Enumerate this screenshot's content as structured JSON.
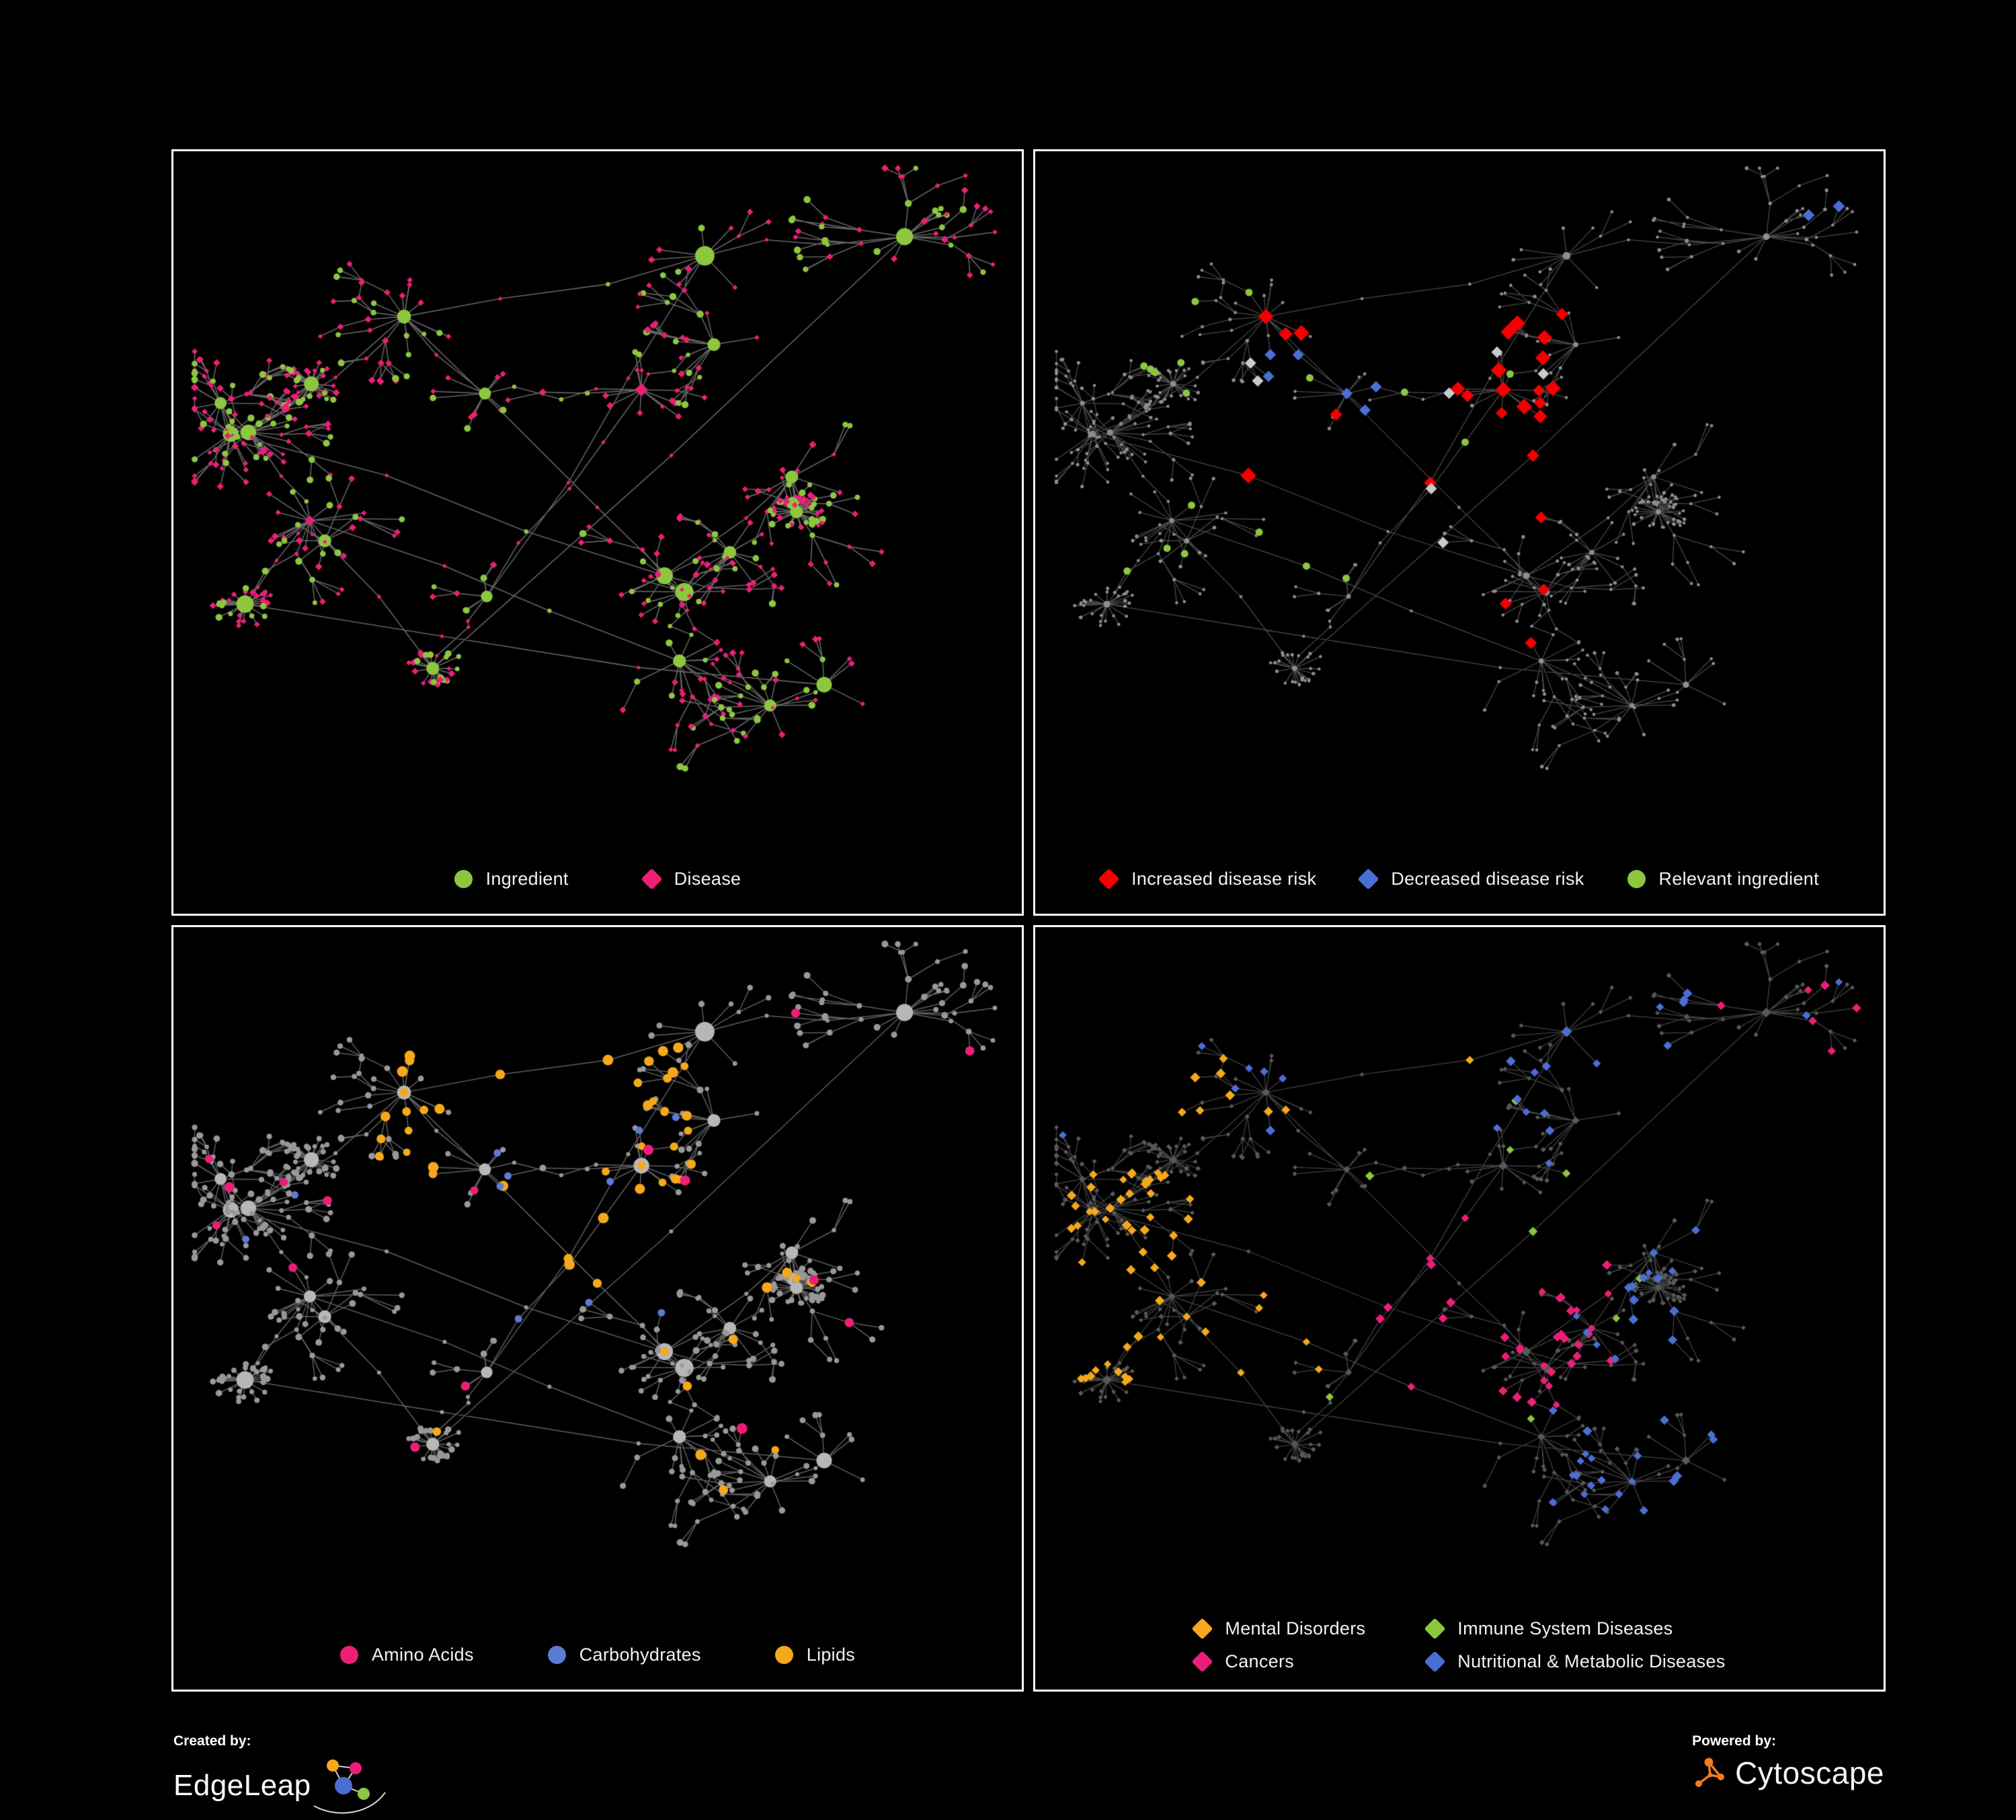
{
  "page": {
    "background": "#000000",
    "panel_border": "#ffffff"
  },
  "panels": [
    {
      "id": "ingredient-disease",
      "legend": [
        {
          "label": "Ingredient",
          "shape": "circle",
          "color": "#8dc63f"
        },
        {
          "label": "Disease",
          "shape": "diamond",
          "color": "#ec1e78"
        }
      ]
    },
    {
      "id": "disease-risk",
      "legend": [
        {
          "label": "Increased disease risk",
          "shape": "diamond",
          "color": "#f40000"
        },
        {
          "label": "Decreased disease risk",
          "shape": "diamond",
          "color": "#4a6fd4"
        },
        {
          "label": "Relevant ingredient",
          "shape": "circle",
          "color": "#8dc63f"
        }
      ]
    },
    {
      "id": "nutrient-classes",
      "legend": [
        {
          "label": "Amino Acids",
          "shape": "circle",
          "color": "#ec1e78"
        },
        {
          "label": "Carbohydrates",
          "shape": "circle",
          "color": "#5b7bd5"
        },
        {
          "label": "Lipids",
          "shape": "circle",
          "color": "#f5a81c"
        }
      ]
    },
    {
      "id": "disease-classes",
      "legend": [
        {
          "label": "Mental Disorders",
          "shape": "diamond",
          "color": "#f5a81c"
        },
        {
          "label": "Immune System Diseases",
          "shape": "diamond",
          "color": "#8dc63f"
        },
        {
          "label": "Cancers",
          "shape": "diamond",
          "color": "#ec1e78"
        },
        {
          "label": "Nutritional & Metabolic Diseases",
          "shape": "diamond",
          "color": "#4a6fd4"
        }
      ]
    }
  ],
  "network": {
    "seed": 1337,
    "hub_clusters": 24,
    "edge_color": "#666666",
    "base_node_color": "#9a9a9a",
    "dark_diamond_color": "#585858",
    "gray_diamond_highlight": "#c7cbd1"
  },
  "footer": {
    "created_by_label": "Created by:",
    "created_by_name": "EdgeLeap",
    "powered_by_label": "Powered by:",
    "powered_by_name": "Cytoscape"
  }
}
